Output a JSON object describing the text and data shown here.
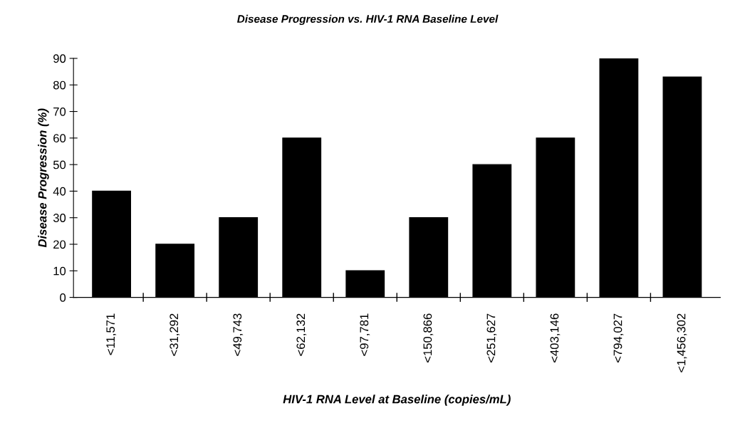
{
  "chart_data": {
    "type": "bar",
    "title": "Disease Progression vs. HIV-1 RNA Baseline Level",
    "xlabel": "HIV-1 RNA Level at Baseline (copies/mL)",
    "ylabel": "Disease Progression (%)",
    "categories": [
      "<11,571",
      "<31,292",
      "<49,743",
      "<62,132",
      "<97,781",
      "<150,866",
      "<251,627",
      "<403,146",
      "<794,027",
      "<1,456,302"
    ],
    "values": [
      40,
      20,
      30,
      60,
      10,
      30,
      50,
      60,
      90,
      83
    ],
    "color": "#000000",
    "ylim": [
      0,
      90
    ],
    "yticks": [
      0,
      10,
      20,
      30,
      40,
      50,
      60,
      70,
      80,
      90
    ],
    "grid": false,
    "legend": false
  }
}
